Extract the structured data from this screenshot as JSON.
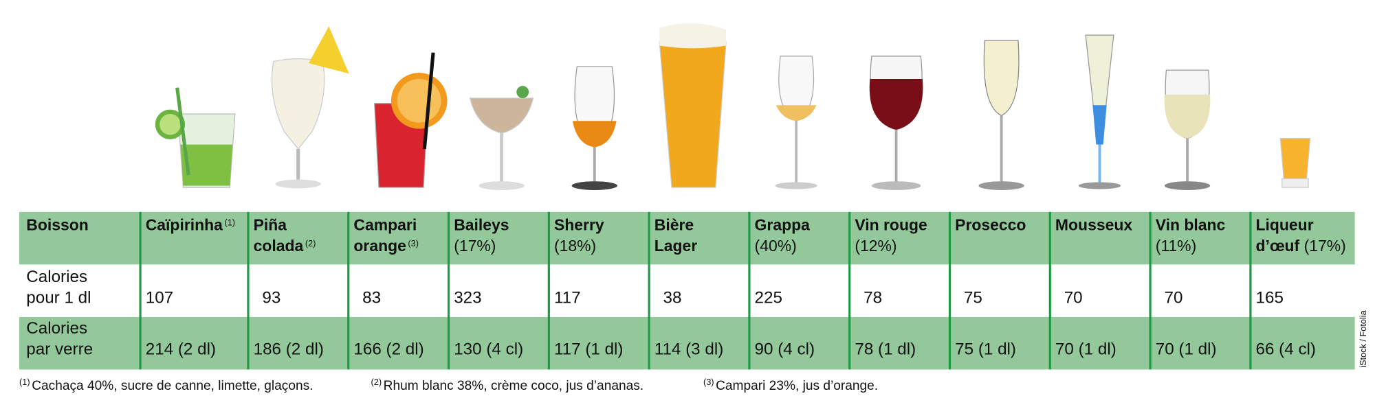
{
  "table": {
    "row_labels": {
      "header": [
        "Boisson"
      ],
      "per_dl": [
        "Calories",
        "pour 1 dl"
      ],
      "per_glass": [
        "Calories",
        "par verre"
      ]
    },
    "columns": [
      {
        "name": [
          "Caïpirinha"
        ],
        "sup": "(1)",
        "per_dl": 107,
        "per_glass": "214 (2 dl)"
      },
      {
        "name": [
          "Piña",
          "colada"
        ],
        "sup": "(2)",
        "per_dl": 93,
        "per_glass": "186 (2 dl)"
      },
      {
        "name": [
          "Campari",
          "orange"
        ],
        "sup": "(3)",
        "per_dl": 83,
        "per_glass": "166 (2 dl)"
      },
      {
        "name": [
          "Baileys"
        ],
        "note": "(17%)",
        "per_dl": 323,
        "per_glass": "130 (4 cl)"
      },
      {
        "name": [
          "Sherry"
        ],
        "note": "(18%)",
        "per_dl": 117,
        "per_glass": "117 (1 dl)"
      },
      {
        "name": [
          "Bière",
          "Lager"
        ],
        "per_dl": 38,
        "per_glass": "114 (3 dl)"
      },
      {
        "name": [
          "Grappa"
        ],
        "note": "(40%)",
        "per_dl": 225,
        "per_glass": "90 (4 cl)"
      },
      {
        "name": [
          "Vin rouge"
        ],
        "note": "(12%)",
        "per_dl": 78,
        "per_glass": "78 (1 dl)"
      },
      {
        "name": [
          "Prosecco"
        ],
        "per_dl": 75,
        "per_glass": "75 (1 dl)"
      },
      {
        "name": [
          "Mousseux"
        ],
        "per_dl": 70,
        "per_glass": "70 (1 dl)"
      },
      {
        "name": [
          "Vin blanc"
        ],
        "note": "(11%)",
        "per_dl": 70,
        "per_glass": "70 (1 dl)"
      },
      {
        "name": [
          "Liqueur",
          "d’œuf"
        ],
        "note": "(17%)",
        "per_dl": 165,
        "per_glass": "66 (4 cl)"
      }
    ]
  },
  "footnotes": [
    {
      "mark": "(1)",
      "text": "Cachaça 40%, sucre de canne, limette, glaçons."
    },
    {
      "mark": "(2)",
      "text": "Rhum blanc 38%, crème coco, jus d’ananas."
    },
    {
      "mark": "(3)",
      "text": "Campari 23%, jus d’orange."
    }
  ],
  "credit": "iStock / Fotolia"
}
